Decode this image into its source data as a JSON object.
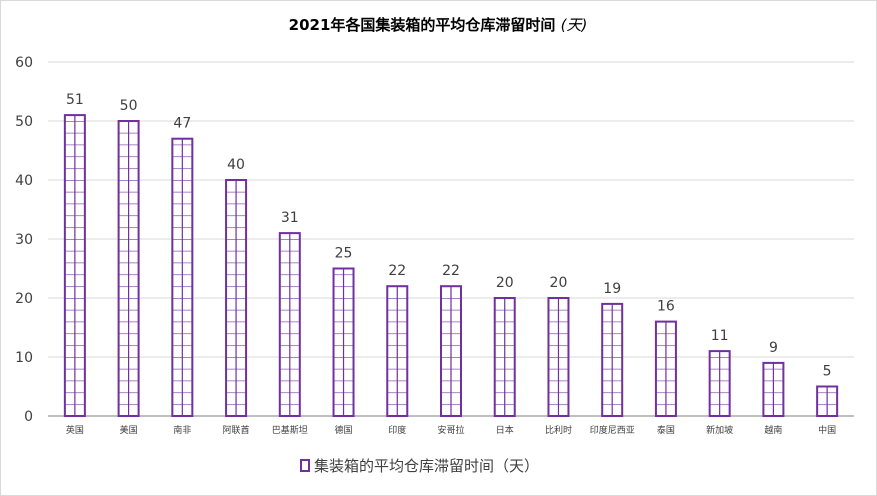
{
  "chart_data": {
    "type": "bar",
    "title": "2021年各国集装箱的平均仓库滞留时间",
    "title_suffix": "(天)",
    "categories": [
      "英国",
      "美国",
      "南非",
      "阿联酋",
      "巴基斯坦",
      "德国",
      "印度",
      "安哥拉",
      "日本",
      "比利时",
      "印度尼西亚",
      "泰国",
      "新加坡",
      "越南",
      "中国"
    ],
    "series": [
      {
        "name": "集装箱的平均仓库滞留时间（天）",
        "values": [
          51,
          50,
          47,
          40,
          31,
          25,
          22,
          22,
          20,
          20,
          19,
          16,
          11,
          9,
          5
        ]
      }
    ],
    "xlabel": "",
    "ylabel": "",
    "ylim": [
      0,
      60
    ],
    "yticks": [
      0,
      10,
      20,
      30,
      40,
      50,
      60
    ],
    "grid": true,
    "legend": "bottom",
    "data_labels": true,
    "colors": {
      "bar": "#7030a0",
      "grid": "#d9d9d9",
      "text": "#404040"
    },
    "bar_pattern": "grid"
  }
}
